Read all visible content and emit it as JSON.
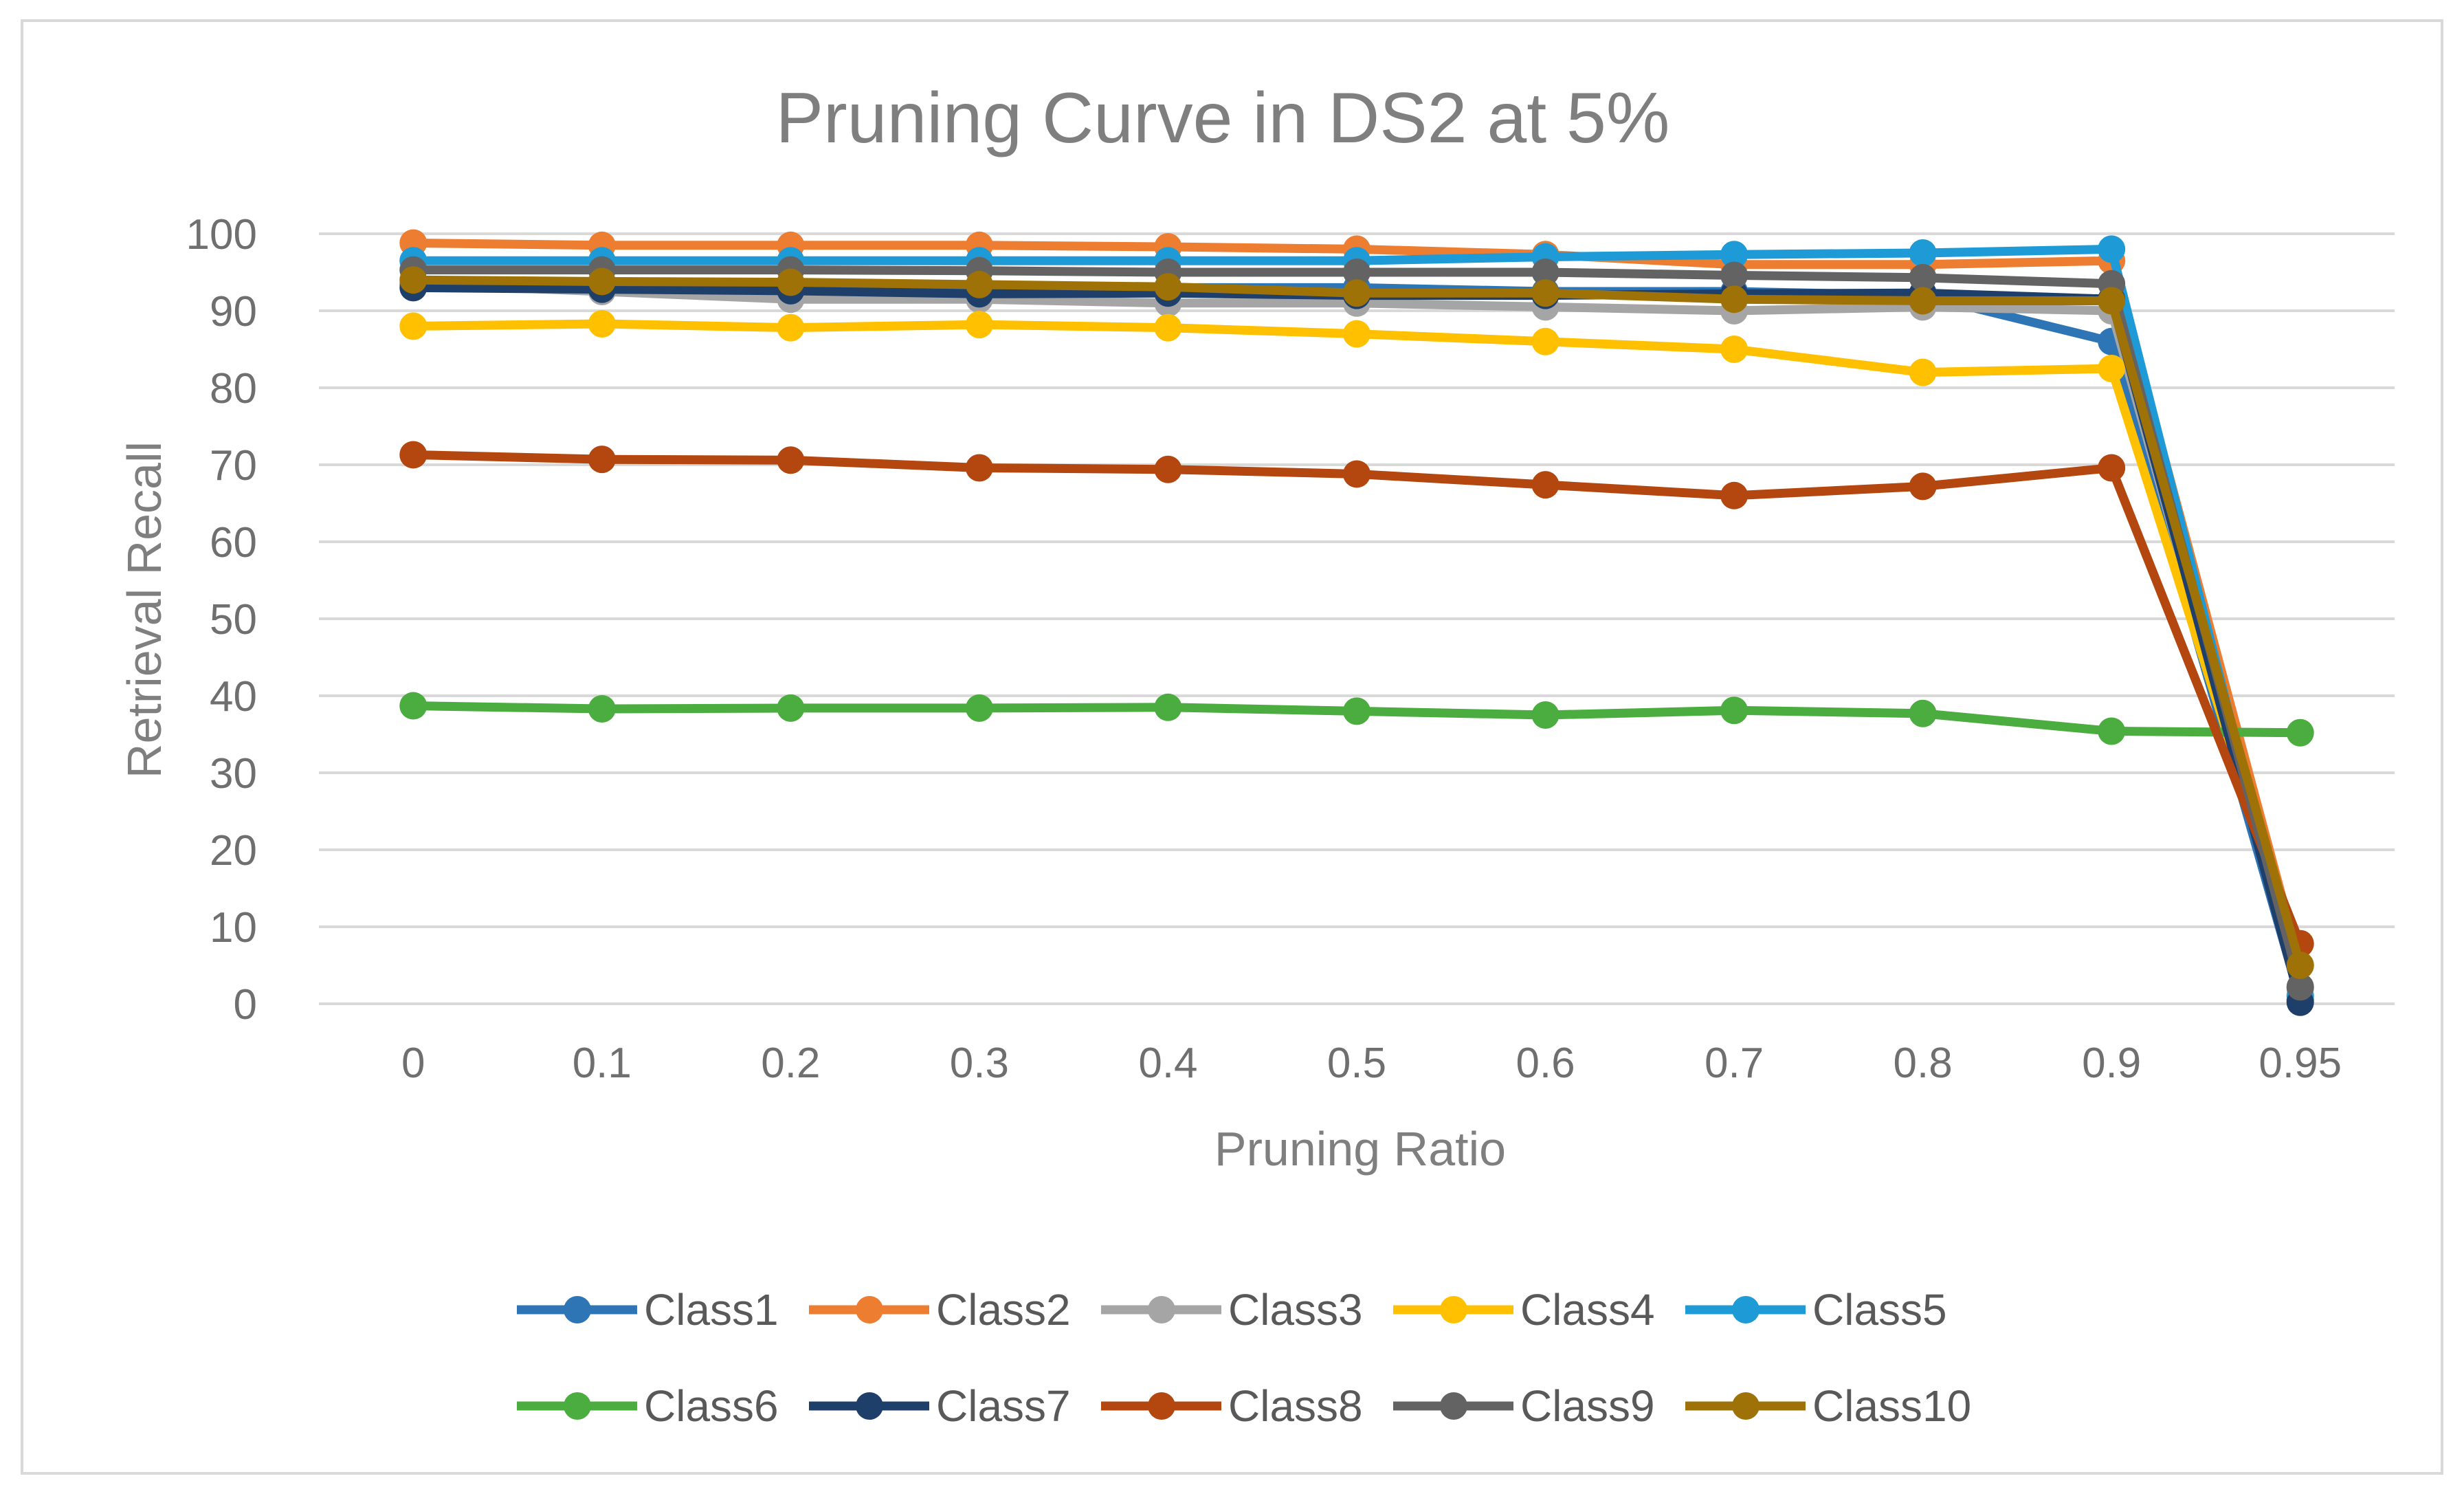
{
  "chart_data": {
    "type": "line",
    "title": "Pruning Curve in DS2 at 5%",
    "xlabel": "Pruning Ratio",
    "ylabel": "Retrieval Recall",
    "categories": [
      "0",
      "0.1",
      "0.2",
      "0.3",
      "0.4",
      "0.5",
      "0.6",
      "0.7",
      "0.8",
      "0.9",
      "0.95"
    ],
    "ylim": [
      0,
      100
    ],
    "yticks": [
      "0",
      "10",
      "20",
      "30",
      "40",
      "50",
      "60",
      "70",
      "80",
      "90",
      "100"
    ],
    "grid": true,
    "legend_position": "bottom",
    "series": [
      {
        "name": "Class1",
        "color": "#2e75b6",
        "values": [
          93.5,
          93,
          93,
          93,
          93,
          93,
          92.5,
          92.5,
          92,
          86,
          0.5
        ]
      },
      {
        "name": "Class2",
        "color": "#ed7d31",
        "values": [
          98.8,
          98.5,
          98.5,
          98.5,
          98.3,
          98,
          97.3,
          96,
          96,
          96.5,
          5
        ]
      },
      {
        "name": "Class3",
        "color": "#a5a5a5",
        "values": [
          93.5,
          92.5,
          91.5,
          91.5,
          91,
          91,
          90.5,
          90,
          90.5,
          90,
          2
        ]
      },
      {
        "name": "Class4",
        "color": "#ffc000",
        "values": [
          88,
          88.3,
          87.8,
          88.2,
          87.8,
          87,
          86,
          85,
          82,
          82.5,
          5
        ]
      },
      {
        "name": "Class5",
        "color": "#1e9ad6",
        "values": [
          96.5,
          96.5,
          96.5,
          96.5,
          96.5,
          96.5,
          97,
          97.3,
          97.5,
          98,
          1
        ]
      },
      {
        "name": "Class6",
        "color": "#4bac3f",
        "values": [
          38.7,
          38.3,
          38.4,
          38.4,
          38.5,
          38,
          37.5,
          38.1,
          37.7,
          35.4,
          35.2
        ]
      },
      {
        "name": "Class7",
        "color": "#1f3f6b",
        "values": [
          93,
          92.8,
          92.6,
          92.2,
          92.3,
          92,
          92,
          92.2,
          92.3,
          91.5,
          0.2
        ]
      },
      {
        "name": "Class8",
        "color": "#b3470f",
        "values": [
          71.3,
          70.7,
          70.6,
          69.6,
          69.4,
          68.8,
          67.4,
          66,
          67.2,
          69.6,
          7.8
        ]
      },
      {
        "name": "Class9",
        "color": "#636363",
        "values": [
          95.3,
          95.3,
          95.3,
          95.2,
          95,
          95,
          95,
          94.6,
          94.3,
          93.5,
          2.2
        ]
      },
      {
        "name": "Class10",
        "color": "#9e7206",
        "values": [
          94,
          93.8,
          93.7,
          93.4,
          93.1,
          92.3,
          92.3,
          91.5,
          91.3,
          91.3,
          5
        ]
      }
    ]
  }
}
